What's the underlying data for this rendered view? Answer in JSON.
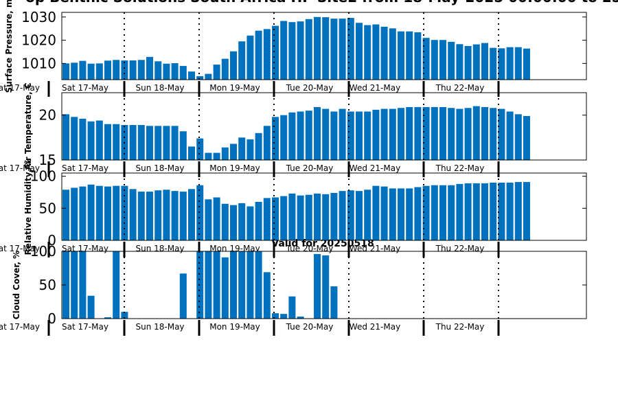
{
  "title": "op Benthic Solutions South Africa HP Site2 from 18-May-2025 00:00:00 to 25-M",
  "subtitle": "Valid for 20250518",
  "days": [
    "Sat 17-May",
    "Sun 18-May",
    "Mon 19-May",
    "Tue 20-May",
    "Wed 21-May",
    "Thu 22-May"
  ],
  "cut_day_label": "at 17-May",
  "bar_color": "#0072bd",
  "chart_data": [
    {
      "type": "bar",
      "ylabel": "Surface Pressure, m",
      "yticks": [
        1010,
        1020,
        1030
      ],
      "ylim": [
        1003,
        1032
      ],
      "values": [
        1010,
        1010.3,
        1011.1,
        1009.9,
        1010,
        1011.2,
        1011.5,
        1011.3,
        1011.3,
        1011.5,
        1012.8,
        1010.9,
        1009.9,
        1010.1,
        1008.9,
        1006.5,
        1004.5,
        1005.5,
        1009.5,
        1012,
        1015.2,
        1019.5,
        1022,
        1024.1,
        1024.8,
        1026.2,
        1028.3,
        1027.8,
        1028.1,
        1029.1,
        1030,
        1029.9,
        1029.3,
        1029.3,
        1029.6,
        1027.5,
        1026.5,
        1026.8,
        1025.8,
        1025.1,
        1023.8,
        1023.8,
        1023.4,
        1021,
        1020.1,
        1020.1,
        1019.3,
        1018.3,
        1017.5,
        1018.2,
        1018.8,
        1016.7,
        1016.5,
        1017,
        1017,
        1016.4
      ]
    },
    {
      "type": "bar",
      "ylabel": "Air Temperature, C",
      "yticks": [
        15,
        20
      ],
      "ylim": [
        15,
        22.5
      ],
      "values": [
        20.1,
        19.8,
        19.6,
        19.3,
        19.4,
        19.0,
        19.0,
        18.9,
        18.9,
        18.9,
        18.8,
        18.8,
        18.8,
        18.8,
        18.2,
        16.5,
        17.4,
        15.8,
        15.8,
        16.4,
        16.8,
        17.5,
        17.3,
        18.0,
        18.8,
        19.8,
        20.0,
        20.3,
        20.4,
        20.5,
        20.9,
        20.7,
        20.4,
        20.7,
        20.4,
        20.4,
        20.4,
        20.6,
        20.7,
        20.7,
        20.8,
        20.9,
        20.9,
        20.9,
        20.9,
        20.9,
        20.8,
        20.7,
        20.8,
        21.0,
        20.9,
        20.8,
        20.7,
        20.4,
        20.1,
        19.9
      ]
    },
    {
      "type": "bar",
      "ylabel": "Relative Humidity, %",
      "yticks": [
        0,
        50,
        100
      ],
      "ylim": [
        0,
        105
      ],
      "values": [
        79,
        82,
        84,
        87,
        85,
        84,
        85,
        85,
        80,
        76,
        76,
        78,
        79,
        77,
        76,
        80,
        86,
        64,
        67,
        57,
        55,
        58,
        53,
        60,
        66,
        67,
        69,
        73,
        70,
        71,
        73,
        72,
        74,
        77,
        78,
        77,
        79,
        85,
        84,
        81,
        81,
        81,
        83,
        85,
        86,
        86,
        86,
        88,
        89,
        89,
        89,
        90,
        90,
        90,
        91,
        91
      ]
    },
    {
      "type": "bar",
      "ylabel": "Cloud Cover, %",
      "yticks": [
        0,
        50,
        100
      ],
      "ylim": [
        0,
        100
      ],
      "values": [
        100,
        100,
        100,
        34,
        0,
        2,
        100,
        10,
        0,
        0,
        0,
        0,
        0,
        0,
        67,
        0,
        100,
        100,
        100,
        91,
        100,
        100,
        100,
        100,
        69,
        8,
        7,
        33,
        3,
        0,
        96,
        94,
        48,
        0,
        0,
        0,
        0,
        0,
        0,
        0,
        0,
        0,
        0,
        0,
        0,
        0,
        0,
        0,
        0,
        0,
        0,
        0,
        0,
        0,
        0,
        0
      ]
    }
  ]
}
